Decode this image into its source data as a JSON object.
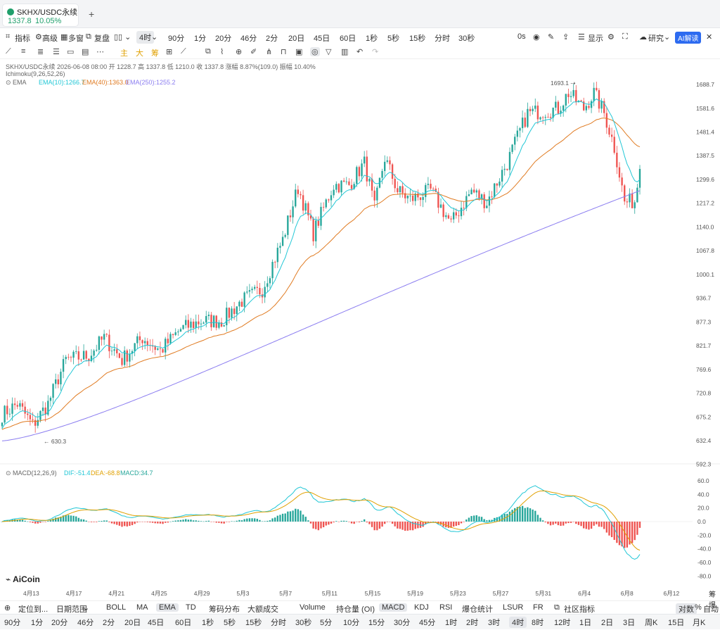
{
  "tab": {
    "symbol": "SKHX/USDC永续",
    "price": "1337.8",
    "change": "10.05%",
    "add": "+"
  },
  "toolbar": {
    "items": [
      "指标",
      "高级",
      "多窗",
      "复盘",
      "4时",
      "90分",
      "1分",
      "20分",
      "46分",
      "2分",
      "20日",
      "45日",
      "60日",
      "1秒",
      "5秒",
      "15秒",
      "分时",
      "30秒"
    ],
    "right": [
      "0s",
      "显示",
      "研究"
    ],
    "ai": "AI解读"
  },
  "drawtools": [
    "主",
    "大",
    "筹"
  ],
  "ohlc": {
    "line": "SKHX/USDC永续  2026-06-08 08:00  开 1228.7  高 1337.8  低 1210.0  收 1337.8  涨幅 8.87%(109.0)  振幅 10.40%"
  },
  "indicators": {
    "ichimoku": "Ichimoku(9,26,52,26)",
    "ema_label": "EMA",
    "ema10": "EMA(10):1266.7",
    "ema40": "EMA(40):1363.0",
    "ema250": "EMA(250):1255.2",
    "macd_label": "MACD(12,26,9)",
    "dif": "DIF:-51.4",
    "dea": "DEA:-68.8",
    "macd": "MACD:34.7"
  },
  "colors": {
    "up": "#26a69a",
    "down": "#ef5350",
    "ema10": "#22c7d6",
    "ema40": "#e07b22",
    "ema250": "#8b7df0",
    "accent": "#2d6bf0"
  },
  "chart_data": {
    "type": "candlestick",
    "yticks": [
      1688.7,
      1581.6,
      1481.4,
      1387.5,
      1299.6,
      1217.2,
      1140.0,
      1067.8,
      1000.1,
      936.7,
      877.3,
      821.7,
      769.6,
      720.8,
      675.2,
      632.4,
      592.3
    ],
    "xticks": [
      "4月13",
      "4月17",
      "4月21",
      "4月25",
      "4月29",
      "5月3",
      "5月7",
      "5月11",
      "5月15",
      "5月19",
      "5月23",
      "5月27",
      "5月31",
      "6月4",
      "6月8",
      "6月12"
    ],
    "high_marker": "1693.1",
    "low_marker": "630.3",
    "close_anchor": [
      [
        0,
        680
      ],
      [
        6,
        700
      ],
      [
        12,
        660
      ],
      [
        18,
        700
      ],
      [
        25,
        790
      ],
      [
        34,
        800
      ],
      [
        40,
        840
      ],
      [
        47,
        790
      ],
      [
        55,
        840
      ],
      [
        62,
        810
      ],
      [
        70,
        860
      ],
      [
        78,
        880
      ],
      [
        86,
        880
      ],
      [
        94,
        930
      ],
      [
        102,
        960
      ],
      [
        110,
        1100
      ],
      [
        116,
        1270
      ],
      [
        122,
        1120
      ],
      [
        130,
        1280
      ],
      [
        136,
        1280
      ],
      [
        142,
        1360
      ],
      [
        146,
        1200
      ],
      [
        150,
        1380
      ],
      [
        155,
        1260
      ],
      [
        160,
        1230
      ],
      [
        168,
        1260
      ],
      [
        176,
        1150
      ],
      [
        184,
        1260
      ],
      [
        190,
        1220
      ],
      [
        198,
        1360
      ],
      [
        206,
        1560
      ],
      [
        212,
        1570
      ],
      [
        218,
        1580
      ],
      [
        222,
        1650
      ],
      [
        228,
        1580
      ],
      [
        232,
        1650
      ],
      [
        236,
        1560
      ],
      [
        240,
        1420
      ],
      [
        244,
        1220
      ],
      [
        248,
        1225
      ],
      [
        250,
        1337
      ]
    ],
    "macd_yticks": [
      60.0,
      40.0,
      20.0,
      0.0,
      -20.0,
      -40.0,
      -60.0,
      -80.0
    ]
  },
  "bottom": {
    "row1": [
      "定位到...",
      "日期范围",
      "BOLL",
      "MA",
      "EMA",
      "TD",
      "筹码分布",
      "大额成交",
      "Volume",
      "持仓量 (OI)",
      "MACD",
      "KDJ",
      "RSI",
      "爆仓统计",
      "LSUR",
      "FR",
      "社区指标",
      "对数",
      "%",
      "自动"
    ],
    "row2": [
      "90分",
      "1分",
      "20分",
      "46分",
      "2分",
      "20日",
      "45日",
      "60日",
      "1秒",
      "5秒",
      "15秒",
      "分时",
      "30秒",
      "5分",
      "10分",
      "15分",
      "30分",
      "45分",
      "1时",
      "2时",
      "3时",
      "4时",
      "8时",
      "12时",
      "1日",
      "2日",
      "3日",
      "周K",
      "15日",
      "月K"
    ]
  },
  "right_side": [
    "筹",
    "爆"
  ],
  "logo": "AiCoin"
}
